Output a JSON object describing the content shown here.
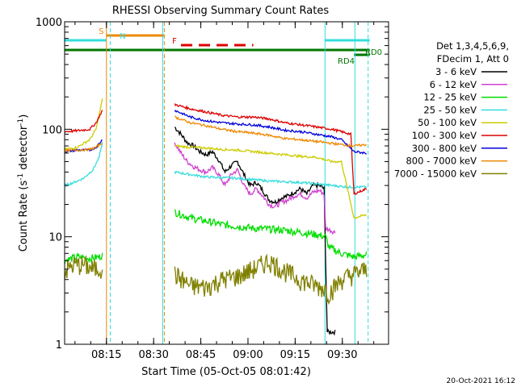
{
  "chart_data": {
    "type": "line",
    "title": "RHESSI Observing Summary Count Rates",
    "xlabel": "Start Time (05-Oct-05 08:01:42)",
    "ylabel_main": "Count Rate (s",
    "ylabel_sup1": "-1",
    "ylabel_mid": " detector",
    "ylabel_sup2": "-1",
    "ylabel_end": ")",
    "yscale": "log",
    "ylim": [
      1,
      1000
    ],
    "xlim_min": [
      0,
      103
    ],
    "x_ticks": [
      {
        "min": 13.3,
        "label": "08:15"
      },
      {
        "min": 28.3,
        "label": "08:30"
      },
      {
        "min": 43.3,
        "label": "08:45"
      },
      {
        "min": 58.3,
        "label": "09:00"
      },
      {
        "min": 73.3,
        "label": "09:15"
      },
      {
        "min": 88.3,
        "label": "09:30"
      }
    ],
    "y_ticks": [
      {
        "value": 1,
        "label": "1"
      },
      {
        "value": 10,
        "label": "10"
      },
      {
        "value": 100,
        "label": "100"
      },
      {
        "value": 1000,
        "label": "1000"
      }
    ],
    "legend_header": [
      "Det 1,3,4,5,6,9,",
      "FDecim 1, Att 0"
    ],
    "series": [
      {
        "name": "3 - 6 keV",
        "color": "#000000",
        "seg1": [],
        "seg2": [
          [
            35,
            105
          ],
          [
            37,
            90
          ],
          [
            39,
            75
          ],
          [
            41,
            70
          ],
          [
            43,
            62
          ],
          [
            45,
            58
          ],
          [
            47,
            62
          ],
          [
            49,
            52
          ],
          [
            51,
            40
          ],
          [
            53,
            46
          ],
          [
            55,
            50
          ],
          [
            57,
            38
          ],
          [
            59,
            30
          ],
          [
            61,
            32
          ],
          [
            63,
            27
          ],
          [
            65,
            22
          ],
          [
            67,
            21
          ],
          [
            69,
            23
          ],
          [
            71,
            24
          ],
          [
            73,
            26
          ],
          [
            75,
            28
          ],
          [
            77,
            25
          ],
          [
            79,
            30
          ],
          [
            81,
            30
          ],
          [
            82.5,
            28
          ],
          [
            83.5,
            1.3
          ],
          [
            86,
            1.3
          ]
        ]
      },
      {
        "name": "6 - 12 keV",
        "color": "#d040d0",
        "seg1": [],
        "seg2": [
          [
            35,
            75
          ],
          [
            37,
            60
          ],
          [
            39,
            50
          ],
          [
            41,
            45
          ],
          [
            43,
            42
          ],
          [
            45,
            40
          ],
          [
            47,
            44
          ],
          [
            49,
            38
          ],
          [
            51,
            30
          ],
          [
            53,
            38
          ],
          [
            55,
            42
          ],
          [
            57,
            30
          ],
          [
            59,
            25
          ],
          [
            61,
            28
          ],
          [
            63,
            24
          ],
          [
            65,
            20
          ],
          [
            67,
            19
          ],
          [
            69,
            21
          ],
          [
            71,
            22
          ],
          [
            73,
            24
          ],
          [
            75,
            25
          ],
          [
            77,
            23
          ],
          [
            79,
            26
          ],
          [
            81,
            27
          ],
          [
            82.5,
            25
          ],
          [
            83,
            12
          ],
          [
            86,
            11
          ]
        ]
      },
      {
        "name": "12 - 25 keV",
        "color": "#00dd00",
        "seg1": [
          [
            0,
            6
          ],
          [
            4,
            6.5
          ],
          [
            8,
            6.3
          ],
          [
            11,
            6.5
          ],
          [
            12,
            6.8
          ]
        ],
        "seg2": [
          [
            35,
            17
          ],
          [
            40,
            15
          ],
          [
            45,
            14
          ],
          [
            50,
            13
          ],
          [
            55,
            12.5
          ],
          [
            60,
            12
          ],
          [
            65,
            11.8
          ],
          [
            70,
            11.5
          ],
          [
            75,
            11
          ],
          [
            80,
            10.5
          ],
          [
            83,
            10
          ],
          [
            84,
            8
          ],
          [
            88,
            7
          ],
          [
            92,
            6.5
          ],
          [
            96,
            6.8
          ]
        ]
      },
      {
        "name": "25 - 50 keV",
        "color": "#33dddd",
        "seg1": [
          [
            0,
            30
          ],
          [
            3,
            32
          ],
          [
            6,
            35
          ],
          [
            9,
            42
          ],
          [
            11,
            55
          ],
          [
            12,
            75
          ]
        ],
        "seg2": [
          [
            35,
            40
          ],
          [
            45,
            36
          ],
          [
            55,
            35
          ],
          [
            65,
            33
          ],
          [
            75,
            32
          ],
          [
            80,
            31
          ],
          [
            85,
            30
          ],
          [
            90,
            29
          ],
          [
            96,
            29
          ]
        ]
      },
      {
        "name": "50 - 100 keV",
        "color": "#cccc00",
        "seg1": [
          [
            0,
            65
          ],
          [
            4,
            68
          ],
          [
            8,
            80
          ],
          [
            10,
            100
          ],
          [
            12,
            190
          ]
        ],
        "seg2": [
          [
            35,
            70
          ],
          [
            40,
            68
          ],
          [
            45,
            67
          ],
          [
            50,
            65
          ],
          [
            55,
            64
          ],
          [
            60,
            62
          ],
          [
            65,
            60
          ],
          [
            70,
            58
          ],
          [
            75,
            56
          ],
          [
            80,
            55
          ],
          [
            85,
            50
          ],
          [
            88,
            50
          ],
          [
            92,
            15
          ],
          [
            96,
            16
          ]
        ]
      },
      {
        "name": "100 - 300 keV",
        "color": "#dd0000",
        "seg1": [
          [
            0,
            95
          ],
          [
            4,
            97
          ],
          [
            8,
            100
          ],
          [
            10,
            115
          ],
          [
            12,
            150
          ]
        ],
        "seg2": [
          [
            35,
            170
          ],
          [
            40,
            155
          ],
          [
            45,
            145
          ],
          [
            50,
            135
          ],
          [
            55,
            130
          ],
          [
            60,
            130
          ],
          [
            65,
            125
          ],
          [
            70,
            115
          ],
          [
            75,
            110
          ],
          [
            80,
            105
          ],
          [
            85,
            100
          ],
          [
            88,
            95
          ],
          [
            91,
            90
          ],
          [
            92,
            25
          ],
          [
            96,
            28
          ]
        ]
      },
      {
        "name": "300 - 800 keV",
        "color": "#0000dd",
        "seg1": [
          [
            0,
            62
          ],
          [
            4,
            64
          ],
          [
            8,
            64
          ],
          [
            10,
            68
          ],
          [
            12,
            80
          ]
        ],
        "seg2": [
          [
            35,
            150
          ],
          [
            40,
            130
          ],
          [
            45,
            120
          ],
          [
            50,
            115
          ],
          [
            55,
            112
          ],
          [
            60,
            110
          ],
          [
            65,
            105
          ],
          [
            70,
            98
          ],
          [
            75,
            95
          ],
          [
            80,
            90
          ],
          [
            85,
            85
          ],
          [
            88,
            80
          ],
          [
            92,
            62
          ],
          [
            96,
            60
          ]
        ]
      },
      {
        "name": "800 - 7000 keV",
        "color": "#ee8800",
        "seg1": [
          [
            0,
            63
          ],
          [
            4,
            64
          ],
          [
            8,
            65
          ],
          [
            10,
            68
          ],
          [
            12,
            75
          ]
        ],
        "seg2": [
          [
            35,
            130
          ],
          [
            40,
            115
          ],
          [
            45,
            108
          ],
          [
            50,
            100
          ],
          [
            55,
            95
          ],
          [
            60,
            92
          ],
          [
            65,
            88
          ],
          [
            70,
            82
          ],
          [
            75,
            80
          ],
          [
            80,
            77
          ],
          [
            85,
            74
          ],
          [
            88,
            72
          ],
          [
            92,
            70
          ],
          [
            96,
            72
          ]
        ]
      },
      {
        "name": "7000 - 15000 keV",
        "color": "#808000",
        "seg1": [
          [
            0,
            4.8
          ],
          [
            3,
            5.5
          ],
          [
            6,
            5.5
          ],
          [
            9,
            5
          ],
          [
            12,
            5.2
          ]
        ],
        "seg2": [
          [
            35,
            4.5
          ],
          [
            40,
            3.5
          ],
          [
            45,
            3.4
          ],
          [
            50,
            4
          ],
          [
            55,
            4.3
          ],
          [
            60,
            5
          ],
          [
            65,
            6
          ],
          [
            70,
            4.8
          ],
          [
            75,
            4
          ],
          [
            80,
            3.5
          ],
          [
            83,
            3.3
          ],
          [
            84,
            3
          ],
          [
            88,
            4
          ],
          [
            92,
            4.5
          ],
          [
            96,
            5
          ]
        ]
      }
    ],
    "orange_vlines": [
      13.3,
      31.7
    ],
    "cyan_vlines": [
      14.5,
      31.2,
      82.8,
      92.3,
      96.5
    ],
    "flags": [
      {
        "label": "S",
        "color": "#ee8800",
        "x0": 13.3,
        "x1": 31.7,
        "y": 2.4,
        "dashed": false,
        "label_at": 10.5
      },
      {
        "label": "N",
        "color": "#33dddd",
        "x0": 0,
        "x1": 13.3,
        "y": 4.8,
        "dashed": false,
        "label_at": 17.0
      },
      {
        "label": "",
        "color": "#33dddd",
        "x0": 82.8,
        "x1": 97,
        "y": 4.8,
        "dashed": false,
        "label_at": null
      },
      {
        "label": "F",
        "color": "#dd0000",
        "x0": 37,
        "x1": 60,
        "y": 7.2,
        "dashed": true,
        "label_at": 33.2
      },
      {
        "label": "RD0",
        "color": "#007700",
        "x0": 0,
        "x1": 97,
        "y": 9.6,
        "dashed": false,
        "label_at": null
      },
      {
        "label": "RD4",
        "color": "#007700",
        "x0": 92,
        "x1": 97,
        "y": 12.0,
        "dashed": false,
        "label_at": null
      }
    ],
    "footer": "20-Oct-2021 16:12"
  }
}
